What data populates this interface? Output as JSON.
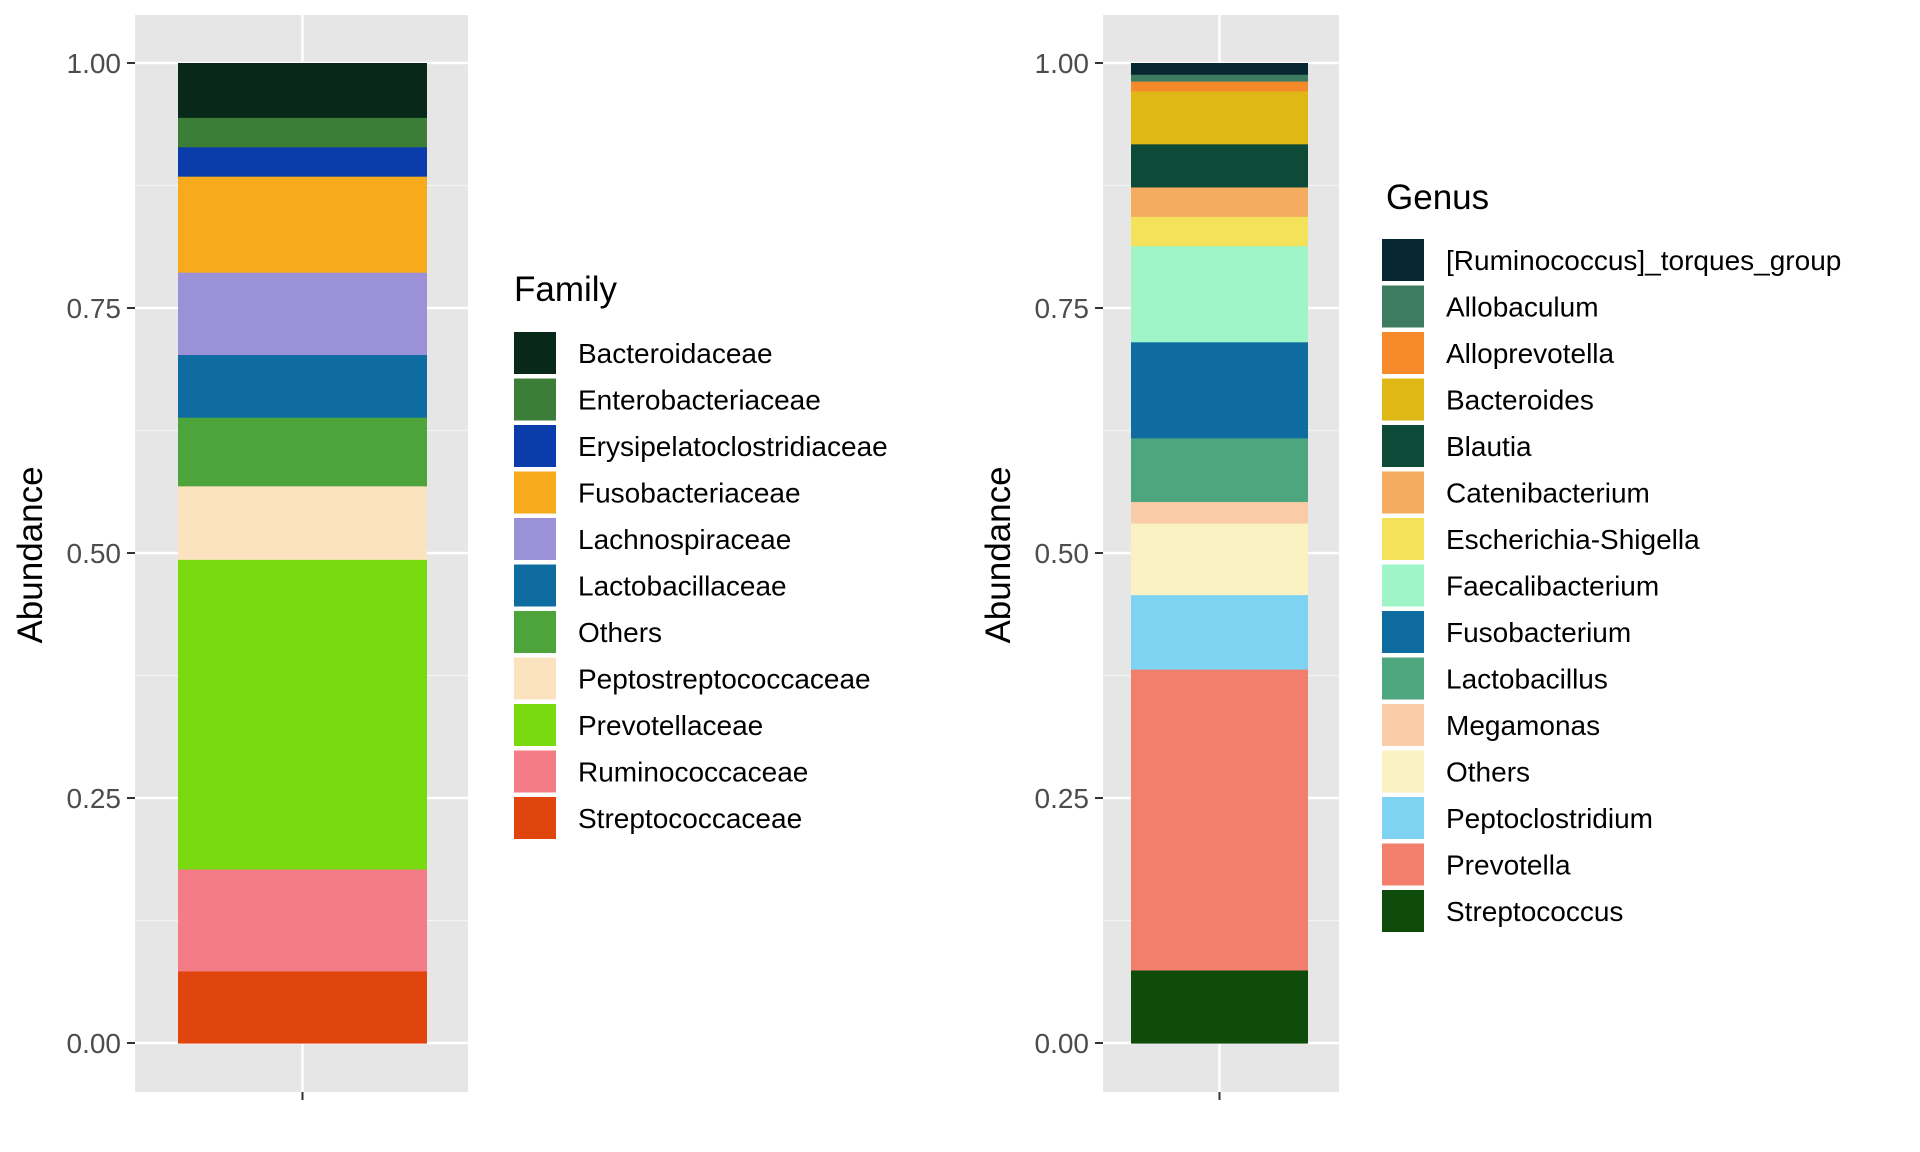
{
  "chart_data": [
    {
      "type": "bar",
      "stacked": true,
      "ylabel": "Abundance",
      "ylim": [
        0,
        1
      ],
      "yticks": [
        "0.00",
        "0.25",
        "0.50",
        "0.75",
        "1.00"
      ],
      "categories": [
        ""
      ],
      "legend_title": "Family",
      "legend_position": "right",
      "grid": true,
      "series": [
        {
          "name": "Bacteroidaceae",
          "value": 0.056,
          "color": "#08291a"
        },
        {
          "name": "Enterobacteriaceae",
          "value": 0.03,
          "color": "#3c7e38"
        },
        {
          "name": "Erysipelatoclostridiaceae",
          "value": 0.03,
          "color": "#0b3cab"
        },
        {
          "name": "Fusobacteriaceae",
          "value": 0.098,
          "color": "#f6aa1c"
        },
        {
          "name": "Lachnospiraceae",
          "value": 0.084,
          "color": "#9b91d8"
        },
        {
          "name": "Lactobacillaceae",
          "value": 0.064,
          "color": "#0e6ca1"
        },
        {
          "name": "Others",
          "value": 0.07,
          "color": "#4da43a"
        },
        {
          "name": "Peptostreptococcaceae",
          "value": 0.075,
          "color": "#fbe3c0"
        },
        {
          "name": "Prevotellaceae",
          "value": 0.316,
          "color": "#7ada10"
        },
        {
          "name": "Ruminococcaceae",
          "value": 0.104,
          "color": "#f47c86"
        },
        {
          "name": "Streptococcaceae",
          "value": 0.073,
          "color": "#e0450e"
        }
      ]
    },
    {
      "type": "bar",
      "stacked": true,
      "ylabel": "Abundance",
      "ylim": [
        0,
        1
      ],
      "yticks": [
        "0.00",
        "0.25",
        "0.50",
        "0.75",
        "1.00"
      ],
      "categories": [
        ""
      ],
      "legend_title": "Genus",
      "legend_position": "right",
      "grid": true,
      "series": [
        {
          "name": "[Ruminococcus]_torques_group",
          "value": 0.012,
          "color": "#072733"
        },
        {
          "name": "Allobaculum",
          "value": 0.007,
          "color": "#3e7c62"
        },
        {
          "name": "Alloprevotella",
          "value": 0.01,
          "color": "#f68a2b"
        },
        {
          "name": "Bacteroides",
          "value": 0.054,
          "color": "#dfb815"
        },
        {
          "name": "Blautia",
          "value": 0.044,
          "color": "#0d4a37"
        },
        {
          "name": "Catenibacterium",
          "value": 0.03,
          "color": "#f5ab60"
        },
        {
          "name": "Escherichia-Shigella",
          "value": 0.03,
          "color": "#f4e25a"
        },
        {
          "name": "Faecalibacterium",
          "value": 0.098,
          "color": "#9ff4c8"
        },
        {
          "name": "Fusobacterium",
          "value": 0.098,
          "color": "#0e6ca1"
        },
        {
          "name": "Lactobacillus",
          "value": 0.065,
          "color": "#4da67e"
        },
        {
          "name": "Megamonas",
          "value": 0.022,
          "color": "#f9cba7"
        },
        {
          "name": "Others",
          "value": 0.073,
          "color": "#faf2c2"
        },
        {
          "name": "Peptoclostridium",
          "value": 0.076,
          "color": "#7dd3f1"
        },
        {
          "name": "Prevotella",
          "value": 0.307,
          "color": "#f27f6c"
        },
        {
          "name": "Streptococcus",
          "value": 0.074,
          "color": "#0f4c0c"
        }
      ]
    }
  ]
}
